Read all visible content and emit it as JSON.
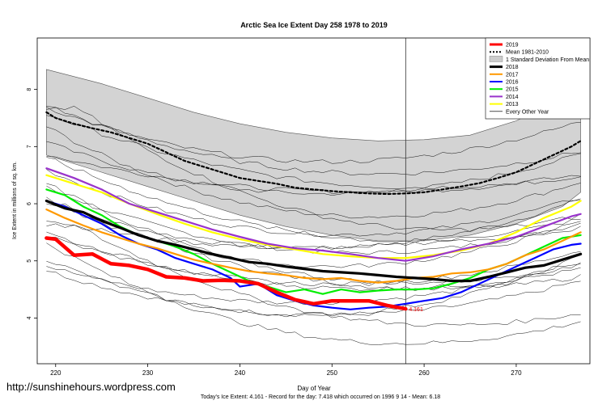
{
  "chart_data": {
    "type": "line",
    "title": "Arctic Sea Ice Extent Day 258 1978 to 2019",
    "xlabel": "Day of Year",
    "ylabel": "Ice Extent in millions of sq. km.",
    "footer": "Today's Ice Extent: 4.161  - Record for the day: 7.418 which occurred on 1996 9 14  - Mean: 6.18",
    "watermark": "http://sunshinehours.wordpress.com",
    "xlim": [
      218,
      278
    ],
    "ylim": [
      3.2,
      8.9
    ],
    "x_ticks": [
      220,
      230,
      240,
      250,
      260,
      270
    ],
    "x_tick_labels": [
      "220",
      "230",
      "240",
      "250",
      "260",
      "270"
    ],
    "y_ticks": [
      4,
      5,
      6,
      7,
      8
    ],
    "y_tick_labels": [
      "4",
      "5",
      "6",
      "7",
      "8"
    ],
    "current_day": 258,
    "current_value_label": "4.161",
    "legend_position": "top-right",
    "legend": [
      {
        "label": "2019",
        "color": "#ff0000",
        "style": "thick"
      },
      {
        "label": "Mean 1981-2010",
        "color": "#000000",
        "style": "dotted"
      },
      {
        "label": "1 Standard Deviation From Mean",
        "color": "#cccccc",
        "style": "box"
      },
      {
        "label": "2018",
        "color": "#000000",
        "style": "thick"
      },
      {
        "label": "2017",
        "color": "#ff9900",
        "style": "line"
      },
      {
        "label": "2016",
        "color": "#0000ff",
        "style": "line"
      },
      {
        "label": "2015",
        "color": "#00ee00",
        "style": "line"
      },
      {
        "label": "2014",
        "color": "#9933cc",
        "style": "line"
      },
      {
        "label": "2013",
        "color": "#ffff00",
        "style": "line"
      },
      {
        "label": "Every Other Year",
        "color": "#000000",
        "style": "thin"
      }
    ],
    "band": {
      "x": [
        219,
        225,
        230,
        235,
        240,
        245,
        250,
        255,
        260,
        265,
        270,
        275,
        277
      ],
      "upper": [
        8.35,
        8.1,
        7.85,
        7.6,
        7.4,
        7.25,
        7.15,
        7.1,
        7.12,
        7.2,
        7.45,
        7.85,
        8.2
      ],
      "lower": [
        6.85,
        6.55,
        6.3,
        6.05,
        5.8,
        5.6,
        5.45,
        5.35,
        5.35,
        5.45,
        5.65,
        5.95,
        6.2
      ]
    },
    "series": [
      {
        "name": "Mean 1981-2010",
        "color": "#000000",
        "width": 2.2,
        "dash": "3,3",
        "x": [
          219,
          220,
          222,
          224,
          226,
          228,
          230,
          232,
          234,
          236,
          238,
          240,
          242,
          244,
          246,
          248,
          250,
          252,
          254,
          256,
          258,
          260,
          262,
          264,
          266,
          268,
          270,
          272,
          274,
          276,
          277
        ],
        "y": [
          7.6,
          7.5,
          7.4,
          7.32,
          7.25,
          7.15,
          7.05,
          6.9,
          6.75,
          6.65,
          6.55,
          6.45,
          6.4,
          6.35,
          6.28,
          6.25,
          6.22,
          6.2,
          6.18,
          6.17,
          6.18,
          6.2,
          6.25,
          6.3,
          6.36,
          6.45,
          6.55,
          6.7,
          6.85,
          7.0,
          7.1
        ]
      },
      {
        "name": "2013",
        "color": "#ffff00",
        "width": 2.2,
        "x": [
          219,
          222,
          225,
          228,
          231,
          234,
          237,
          240,
          243,
          246,
          249,
          252,
          255,
          258,
          261,
          264,
          267,
          270,
          273,
          276,
          277
        ],
        "y": [
          6.5,
          6.35,
          6.2,
          6.0,
          5.82,
          5.65,
          5.5,
          5.38,
          5.28,
          5.2,
          5.12,
          5.08,
          5.05,
          5.05,
          5.1,
          5.18,
          5.3,
          5.5,
          5.75,
          5.95,
          6.05
        ]
      },
      {
        "name": "2014",
        "color": "#9933cc",
        "width": 2.2,
        "x": [
          219,
          222,
          225,
          228,
          231,
          234,
          237,
          240,
          243,
          246,
          249,
          252,
          255,
          258,
          261,
          264,
          267,
          270,
          273,
          276,
          277
        ],
        "y": [
          6.62,
          6.45,
          6.25,
          6.0,
          5.85,
          5.7,
          5.55,
          5.42,
          5.3,
          5.22,
          5.18,
          5.12,
          5.05,
          5.0,
          5.08,
          5.2,
          5.3,
          5.42,
          5.6,
          5.78,
          5.82
        ]
      },
      {
        "name": "2015",
        "color": "#00ee00",
        "width": 2.2,
        "x": [
          219,
          221,
          223,
          225,
          227,
          229,
          231,
          233,
          235,
          237,
          239,
          241,
          243,
          245,
          247,
          249,
          251,
          253,
          255,
          257,
          259,
          261,
          263,
          265,
          267,
          269,
          271,
          273,
          275,
          277
        ],
        "y": [
          6.25,
          6.15,
          5.95,
          5.8,
          5.6,
          5.45,
          5.35,
          5.25,
          5.12,
          4.95,
          4.8,
          4.65,
          4.55,
          4.45,
          4.5,
          4.42,
          4.5,
          4.45,
          4.48,
          4.5,
          4.5,
          4.52,
          4.6,
          4.7,
          4.85,
          4.95,
          5.1,
          5.25,
          5.4,
          5.45
        ]
      },
      {
        "name": "2016",
        "color": "#0000ff",
        "width": 2.2,
        "x": [
          219,
          221,
          223,
          225,
          227,
          229,
          231,
          233,
          235,
          237,
          239,
          240,
          242,
          244,
          246,
          248,
          250,
          252,
          254,
          256,
          258,
          260,
          262,
          264,
          266,
          268,
          270,
          272,
          274,
          276,
          277
        ],
        "y": [
          6.05,
          5.95,
          5.8,
          5.65,
          5.45,
          5.3,
          5.2,
          5.05,
          4.95,
          4.85,
          4.7,
          4.55,
          4.6,
          4.4,
          4.3,
          4.22,
          4.18,
          4.15,
          4.18,
          4.2,
          4.25,
          4.3,
          4.35,
          4.45,
          4.6,
          4.75,
          4.9,
          5.05,
          5.2,
          5.28,
          5.3
        ]
      },
      {
        "name": "2017",
        "color": "#ff9900",
        "width": 2.2,
        "x": [
          219,
          221,
          223,
          225,
          227,
          229,
          231,
          233,
          235,
          237,
          239,
          241,
          243,
          245,
          247,
          249,
          251,
          253,
          255,
          257,
          259,
          261,
          263,
          265,
          267,
          269,
          271,
          273,
          275,
          277
        ],
        "y": [
          5.9,
          5.75,
          5.62,
          5.5,
          5.4,
          5.3,
          5.22,
          5.12,
          5.02,
          4.95,
          4.88,
          4.82,
          4.78,
          4.75,
          4.7,
          4.68,
          4.7,
          4.65,
          4.62,
          4.65,
          4.7,
          4.72,
          4.78,
          4.8,
          4.85,
          4.95,
          5.1,
          5.2,
          5.35,
          5.5
        ]
      },
      {
        "name": "2018",
        "color": "#000000",
        "width": 3.2,
        "x": [
          219,
          221,
          223,
          225,
          227,
          229,
          231,
          233,
          235,
          237,
          239,
          241,
          243,
          245,
          247,
          249,
          251,
          253,
          255,
          257,
          259,
          261,
          263,
          265,
          267,
          269,
          271,
          273,
          275,
          277
        ],
        "y": [
          6.05,
          5.92,
          5.85,
          5.7,
          5.58,
          5.45,
          5.35,
          5.28,
          5.2,
          5.12,
          5.05,
          4.98,
          4.95,
          4.9,
          4.86,
          4.82,
          4.8,
          4.78,
          4.75,
          4.72,
          4.7,
          4.68,
          4.65,
          4.65,
          4.72,
          4.8,
          4.88,
          4.92,
          5.02,
          5.12
        ]
      },
      {
        "name": "2019",
        "color": "#ff0000",
        "width": 4.5,
        "x": [
          219,
          220,
          222,
          224,
          226,
          228,
          230,
          232,
          234,
          236,
          238,
          240,
          242,
          244,
          246,
          248,
          250,
          252,
          254,
          256,
          258
        ],
        "y": [
          5.4,
          5.38,
          5.1,
          5.12,
          4.95,
          4.92,
          4.85,
          4.72,
          4.7,
          4.65,
          4.66,
          4.65,
          4.6,
          4.45,
          4.32,
          4.25,
          4.3,
          4.3,
          4.3,
          4.22,
          4.161
        ]
      }
    ]
  }
}
